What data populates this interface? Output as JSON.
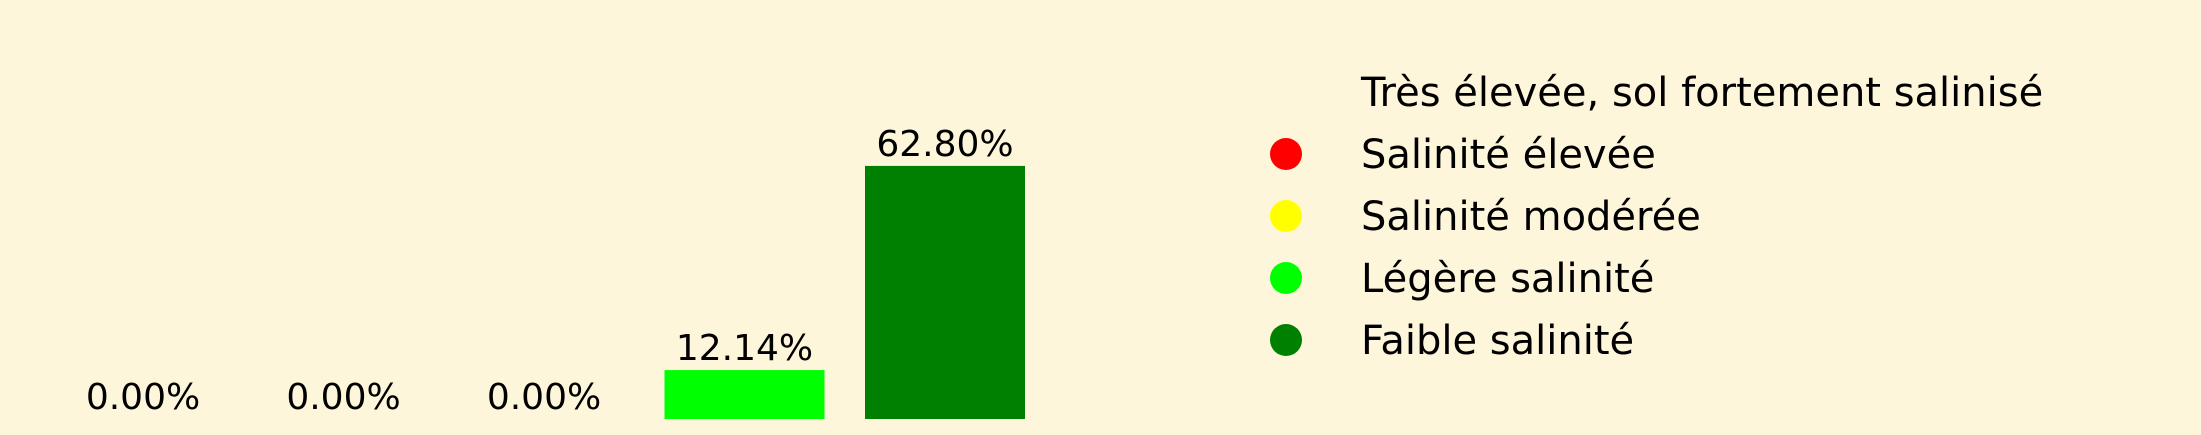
{
  "chart_data": {
    "type": "bar",
    "categories": [
      "Très élevée, sol fortement salinisé",
      "Salinité élevée",
      "Salinité modérée",
      "Légère salinité",
      "Faible salinité"
    ],
    "values": [
      0.0,
      0.0,
      0.0,
      12.14,
      62.8
    ],
    "value_labels": [
      "0.00%",
      "0.00%",
      "0.00%",
      "12.14%",
      "62.80%"
    ],
    "colors": [
      "#fdf6da",
      "#ff0000",
      "#ffff00",
      "#00ff00",
      "#008000"
    ],
    "legend_position": "right",
    "legend": [
      {
        "label": "Très élevée, sol fortement salinisé",
        "color": "#fdf6da"
      },
      {
        "label": "Salinité élevée",
        "color": "#ff0000"
      },
      {
        "label": "Salinité modérée",
        "color": "#ffff00"
      },
      {
        "label": "Légère salinité",
        "color": "#00ff00"
      },
      {
        "label": "Faible salinité",
        "color": "#008000"
      }
    ],
    "title": "",
    "xlabel": "",
    "ylabel": "",
    "grid": false
  },
  "background_color": "#fdf6da"
}
